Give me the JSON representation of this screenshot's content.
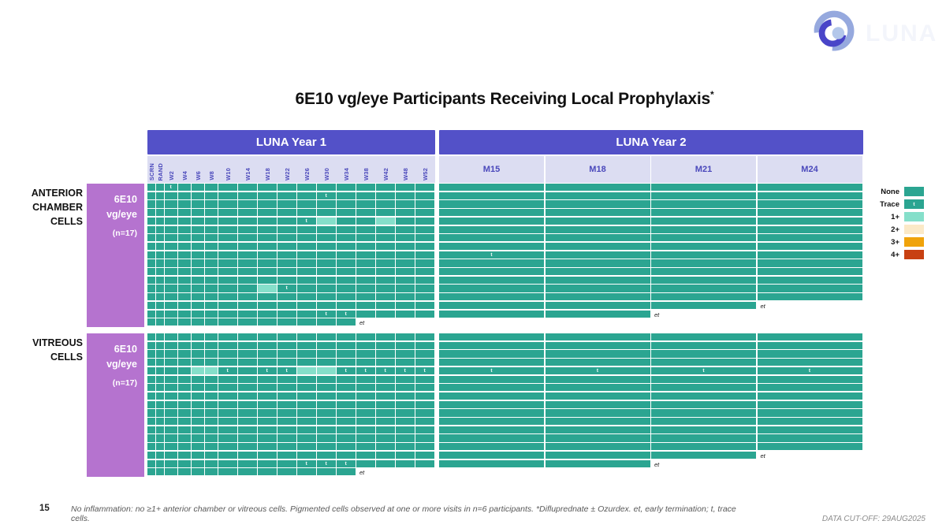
{
  "slide": {
    "title": "6E10 vg/eye Participants Receiving Local Prophylaxis",
    "title_superscript": "*",
    "page_number": "15",
    "footnote": "No inflammation: no ≥1+ anterior chamber or vitreous cells. Pigmented cells observed at one or more visits in n=6 participants.  *Difluprednate ± Ozurdex. et, early termination; t, trace cells.",
    "data_cutoff": "DATA CUT-OFF: 29AUG2025",
    "logo_text": "LUNA"
  },
  "colors": {
    "year_header_bg": "#5351C8",
    "subheader_bg": "#DCDDF2",
    "subheader_text": "#4A48BB",
    "dose_block_bg": "#B573CF"
  },
  "chart_data": {
    "type": "heatmap",
    "title": "6E10 vg/eye Participants Receiving Local Prophylaxis*",
    "column_groups": [
      {
        "label": "LUNA Year 1",
        "columns": [
          "SCRN",
          "RAND",
          "W2",
          "W4",
          "W6",
          "W8",
          "W10",
          "W14",
          "W18",
          "W22",
          "W26",
          "W30",
          "W34",
          "W38",
          "W42",
          "W48",
          "W52"
        ]
      },
      {
        "label": "LUNA Year 2",
        "columns": [
          "M15",
          "M18",
          "M21",
          "M24"
        ]
      }
    ],
    "legend": [
      {
        "label": "None",
        "color": "#2BA591"
      },
      {
        "label": "Trace",
        "color": "#2BA591",
        "mark": "t"
      },
      {
        "label": "1+",
        "color": "#85DFCA"
      },
      {
        "label": "2+",
        "color": "#FBE9C7"
      },
      {
        "label": "3+",
        "color": "#F0A30B"
      },
      {
        "label": "4+",
        "color": "#C84012"
      }
    ],
    "end_note_symbol": "et",
    "trace_symbol": "t",
    "sections": [
      {
        "label_lines": [
          "ANTERIOR",
          "CHAMBER",
          "CELLS"
        ],
        "group_lines": [
          "6E10",
          "vg/eye",
          "(n=17)"
        ],
        "n_rows": 17,
        "default_state": "None",
        "rows": [
          {
            "marks": {
              "W2": "Trace"
            }
          },
          {
            "marks": {
              "W30": "Trace"
            }
          },
          {
            "marks": {}
          },
          {
            "marks": {}
          },
          {
            "marks": {
              "W26": "Trace",
              "W30": "1+",
              "W42": "1+"
            }
          },
          {
            "marks": {}
          },
          {
            "marks": {}
          },
          {
            "marks": {}
          },
          {
            "marks": {
              "M15": "Trace"
            }
          },
          {
            "marks": {}
          },
          {
            "marks": {}
          },
          {
            "marks": {}
          },
          {
            "marks": {
              "W18": "1+",
              "W22": "Trace"
            }
          },
          {
            "marks": {}
          },
          {
            "marks": {},
            "ends_after": "M21",
            "end_note": "et"
          },
          {
            "marks": {
              "W30": "Trace",
              "W34": "Trace"
            },
            "ends_after": "M18",
            "end_note": "et"
          },
          {
            "marks": {},
            "ends_after": "W34",
            "end_note": "et"
          }
        ]
      },
      {
        "label_lines": [
          "VITREOUS",
          "CELLS"
        ],
        "group_lines": [
          "6E10",
          "vg/eye",
          "(n=17)"
        ],
        "n_rows": 17,
        "default_state": "None",
        "rows": [
          {
            "marks": {}
          },
          {
            "marks": {}
          },
          {
            "marks": {}
          },
          {
            "marks": {}
          },
          {
            "marks": {
              "W6": "1+",
              "W8": "1+",
              "W10": "Trace",
              "W18": "Trace",
              "W22": "Trace",
              "W26": "1+",
              "W30": "1+",
              "W34": "Trace",
              "W38": "Trace",
              "W42": "Trace",
              "W48": "Trace",
              "W52": "Trace",
              "M15": "Trace",
              "M18": "Trace",
              "M21": "Trace",
              "M24": "Trace"
            }
          },
          {
            "marks": {}
          },
          {
            "marks": {}
          },
          {
            "marks": {}
          },
          {
            "marks": {}
          },
          {
            "marks": {}
          },
          {
            "marks": {}
          },
          {
            "marks": {}
          },
          {
            "marks": {}
          },
          {
            "marks": {}
          },
          {
            "marks": {},
            "ends_after": "M21",
            "end_note": "et"
          },
          {
            "marks": {
              "W26": "Trace",
              "W30": "Trace",
              "W34": "Trace"
            },
            "ends_after": "M18",
            "end_note": "et"
          },
          {
            "marks": {},
            "ends_after": "W34",
            "end_note": "et"
          }
        ]
      }
    ]
  }
}
